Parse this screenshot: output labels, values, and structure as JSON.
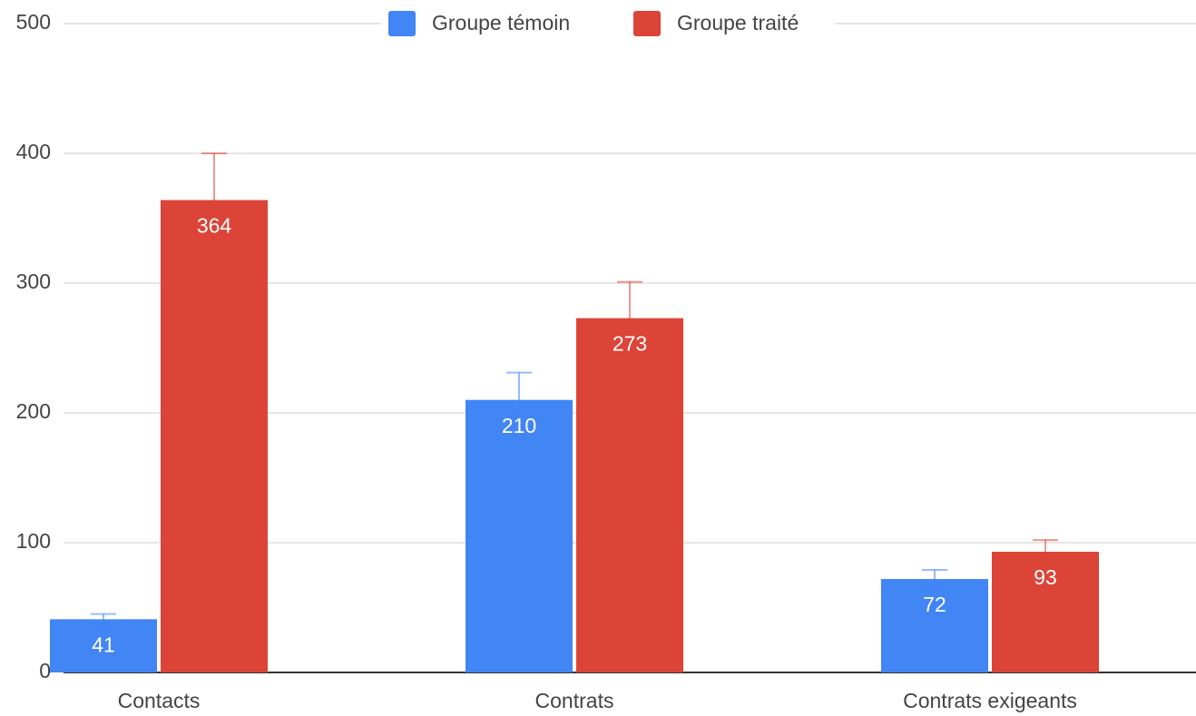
{
  "chart_data": {
    "type": "bar",
    "categories": [
      "Contacts",
      "Contrats",
      "Contrats exigeants"
    ],
    "series": [
      {
        "name": "Groupe témoin",
        "color": "#4285f4",
        "values": [
          41,
          210,
          72
        ],
        "errors": [
          4,
          21,
          7
        ]
      },
      {
        "name": "Groupe traité",
        "color": "#db4437",
        "values": [
          364,
          273,
          93
        ],
        "errors": [
          36,
          28,
          9
        ]
      }
    ],
    "ylim": [
      0,
      500
    ],
    "yticks": [
      0,
      100,
      200,
      300,
      400,
      500
    ],
    "grid": true,
    "legend": "top"
  }
}
